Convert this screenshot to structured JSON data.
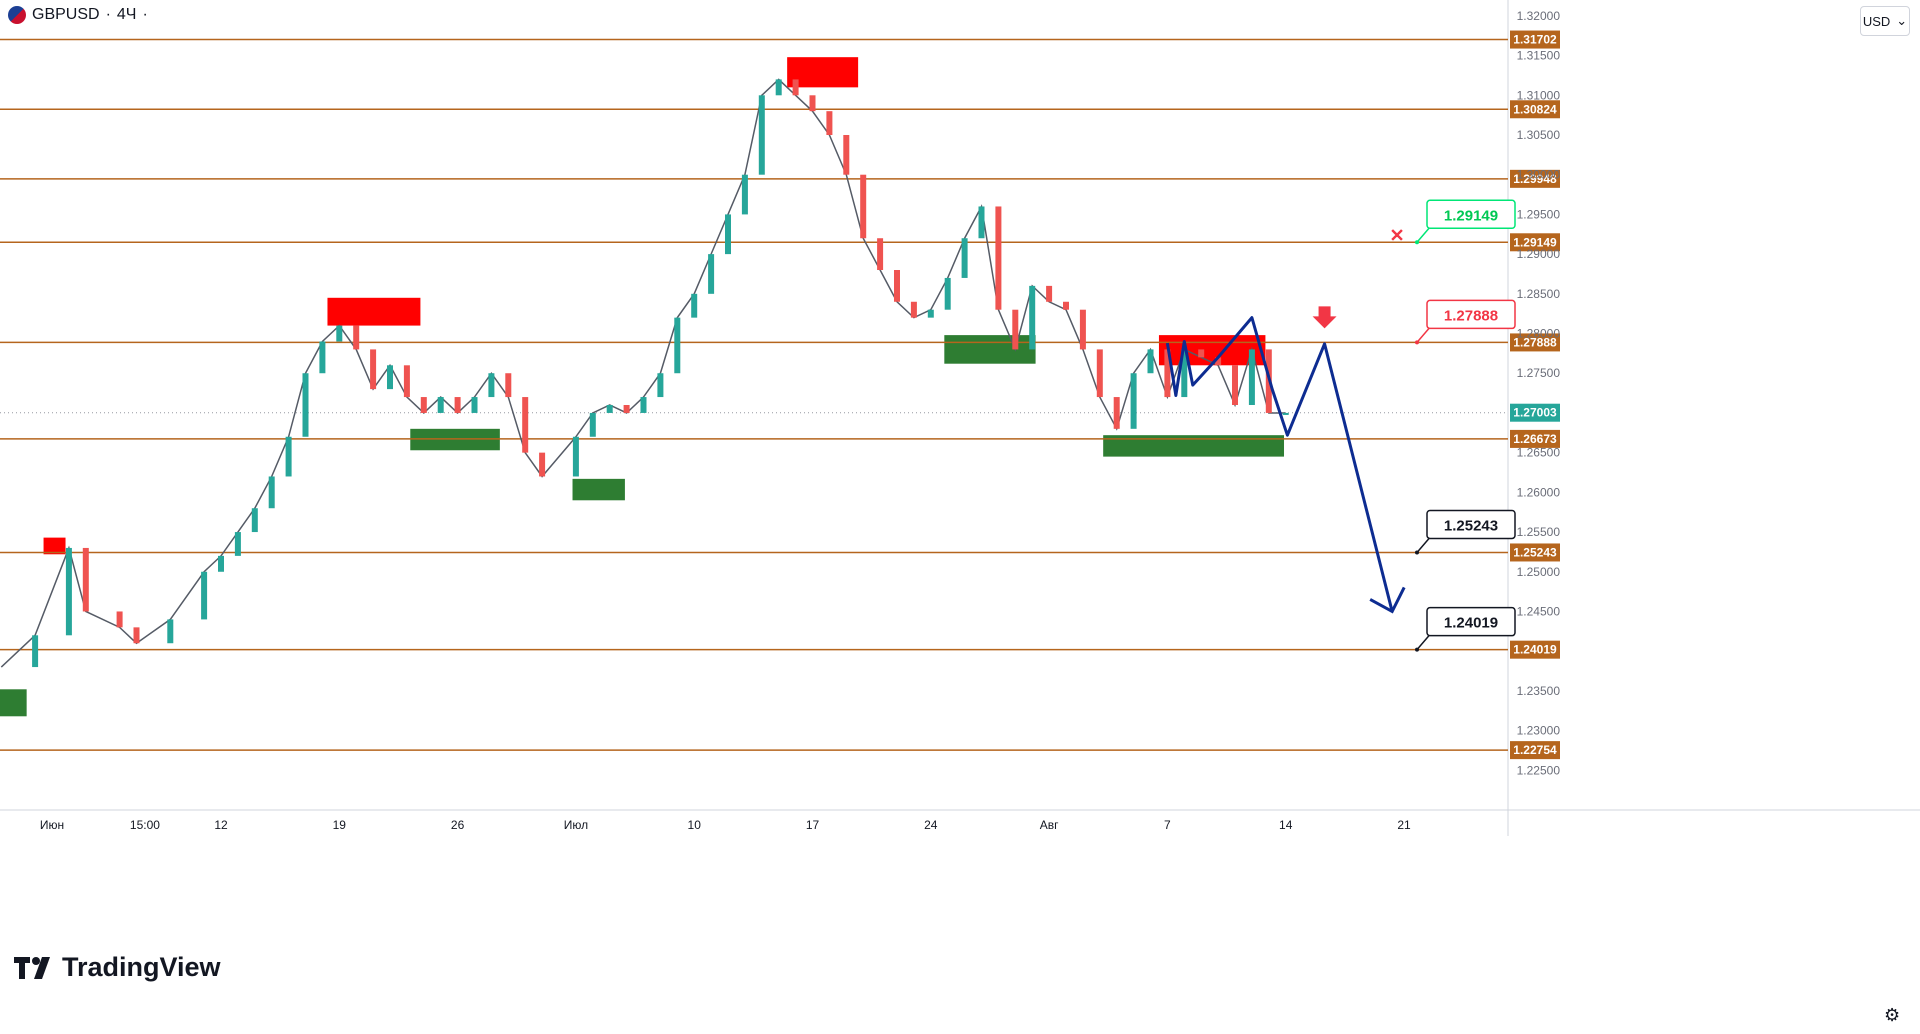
{
  "header": {
    "symbol": "GBPUSD",
    "separator": "·",
    "interval": "4Ч",
    "dot": "·",
    "currency": "USD",
    "currency_arrow": "⌄"
  },
  "brand": {
    "name": "TradingView"
  },
  "colors": {
    "level": "#b5651d",
    "bull": "#26a69a",
    "bear": "#ef5350",
    "green_line": "#4caf50",
    "red_line": "#f23645",
    "forecast": "#0d2c91",
    "supply_box": "#ff0000",
    "demand_box": "#2e7d32",
    "current_price_box": "#26a69a"
  },
  "chart_data": {
    "type": "line",
    "title": "",
    "xlabel": "",
    "ylabel": "",
    "ylim": [
      1.22,
      1.322
    ],
    "grid": false,
    "x_axis_labels": [
      {
        "day": -4,
        "label": "Июн"
      },
      {
        "day": 1.5,
        "label": "15:00"
      },
      {
        "day": 6,
        "label": "12"
      },
      {
        "day": 13,
        "label": "19"
      },
      {
        "day": 20,
        "label": "26"
      },
      {
        "day": 27,
        "label": "Июл"
      },
      {
        "day": 34,
        "label": "10"
      },
      {
        "day": 41,
        "label": "17"
      },
      {
        "day": 48,
        "label": "24"
      },
      {
        "day": 55,
        "label": "Авг"
      },
      {
        "day": 62,
        "label": "7"
      },
      {
        "day": 69,
        "label": "14"
      },
      {
        "day": 76,
        "label": "21"
      }
    ],
    "y_ticks": [
      1.225,
      1.23,
      1.235,
      1.245,
      1.25,
      1.255,
      1.26,
      1.265,
      1.275,
      1.28,
      1.285,
      1.29,
      1.295,
      1.3,
      1.305,
      1.31,
      1.315,
      1.32
    ],
    "y_tick_labels": [
      "1.22500",
      "1.23000",
      "1.23500",
      "1.24500",
      "1.25000",
      "1.25500",
      "1.26000",
      "1.26500",
      "1.27500",
      "1.28000",
      "1.28500",
      "1.29000",
      "1.29500",
      "1.30000",
      "1.30500",
      "1.31000",
      "1.31500",
      "1.32000"
    ],
    "levels": [
      {
        "value": 1.31702,
        "label": "1.31702"
      },
      {
        "value": 1.30824,
        "label": "1.30824"
      },
      {
        "value": 1.29948,
        "label": "1.29948"
      },
      {
        "value": 1.29149,
        "label": "1.29149"
      },
      {
        "value": 1.27888,
        "label": "1.27888"
      },
      {
        "value": 1.26673,
        "label": "1.26673"
      },
      {
        "value": 1.25243,
        "label": "1.25243"
      },
      {
        "value": 1.24019,
        "label": "1.24019"
      },
      {
        "value": 1.22754,
        "label": "1.22754"
      }
    ],
    "current_price": {
      "value": 1.27003,
      "label": "1.27003"
    },
    "price_series": {
      "day": [
        -7,
        -5,
        -3,
        -2,
        0,
        1,
        3,
        5,
        6,
        7,
        8,
        9,
        10,
        11,
        12,
        13,
        14,
        15,
        16,
        17,
        18,
        19,
        20,
        21,
        22,
        23,
        24,
        25,
        27,
        28,
        29,
        30,
        31,
        32,
        33,
        34,
        35,
        36,
        37,
        38,
        39,
        40,
        41,
        42,
        43,
        44,
        45,
        46,
        47,
        48,
        49,
        50,
        51,
        52,
        53,
        54,
        55,
        56,
        57,
        58,
        59,
        60,
        61,
        62,
        63,
        64,
        65,
        66,
        67,
        68,
        69
      ],
      "close": [
        1.238,
        1.242,
        1.253,
        1.245,
        1.243,
        1.241,
        1.244,
        1.25,
        1.252,
        1.255,
        1.258,
        1.262,
        1.267,
        1.275,
        1.279,
        1.281,
        1.278,
        1.273,
        1.276,
        1.272,
        1.27,
        1.272,
        1.27,
        1.272,
        1.275,
        1.272,
        1.265,
        1.262,
        1.267,
        1.27,
        1.271,
        1.27,
        1.272,
        1.275,
        1.282,
        1.285,
        1.29,
        1.295,
        1.3,
        1.31,
        1.312,
        1.31,
        1.308,
        1.305,
        1.3,
        1.292,
        1.288,
        1.284,
        1.282,
        1.283,
        1.287,
        1.292,
        1.296,
        1.283,
        1.278,
        1.286,
        1.284,
        1.283,
        1.278,
        1.272,
        1.268,
        1.275,
        1.278,
        1.272,
        1.278,
        1.277,
        1.276,
        1.271,
        1.278,
        1.27,
        1.27
      ]
    },
    "supply_zones": [
      {
        "day_from": -4.5,
        "day_to": -3.2,
        "low": 1.2522,
        "high": 1.2543
      },
      {
        "day_from": 12.3,
        "day_to": 17.8,
        "low": 1.281,
        "high": 1.2845
      },
      {
        "day_from": 39.5,
        "day_to": 43.7,
        "low": 1.311,
        "high": 1.3148
      },
      {
        "day_from": 61.5,
        "day_to": 67.8,
        "low": 1.276,
        "high": 1.2798
      }
    ],
    "demand_zones": [
      {
        "day_from": -8,
        "day_to": -5.5,
        "low": 1.2318,
        "high": 1.2352
      },
      {
        "day_from": 17.2,
        "day_to": 22.5,
        "low": 1.2653,
        "high": 1.268
      },
      {
        "day_from": 26.8,
        "day_to": 29.9,
        "low": 1.259,
        "high": 1.2617
      },
      {
        "day_from": 48.8,
        "day_to": 54.2,
        "low": 1.2762,
        "high": 1.2798
      },
      {
        "day_from": 58.2,
        "day_to": 68.9,
        "low": 1.2645,
        "high": 1.2672
      }
    ],
    "forecast_path": {
      "day": [
        62,
        62.5,
        63,
        63.5,
        65,
        67,
        68.2,
        69.1,
        71.3,
        75.3
      ],
      "value": [
        1.2788,
        1.2722,
        1.279,
        1.2735,
        1.277,
        1.282,
        1.273,
        1.2672,
        1.2787,
        1.245
      ]
    },
    "targets": [
      {
        "value": 1.29149,
        "label": "1.29149",
        "status": "cancelled"
      },
      {
        "value": 1.27888,
        "label": "1.27888",
        "status": "entry"
      },
      {
        "value": 1.25243,
        "label": "1.25243",
        "status": "target"
      },
      {
        "value": 1.24019,
        "label": "1.24019",
        "status": "target"
      }
    ],
    "sell_signal_day": 71.3
  }
}
